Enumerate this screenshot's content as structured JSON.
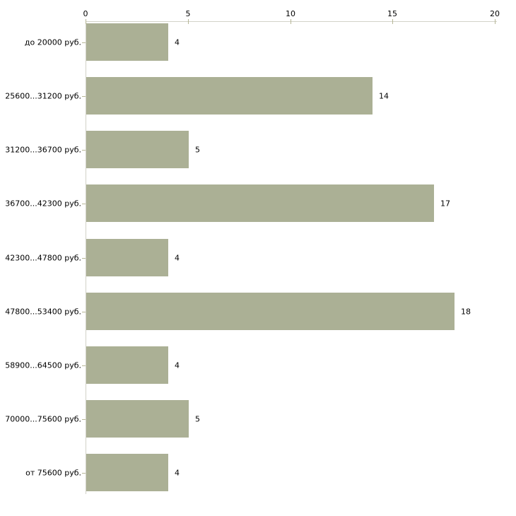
{
  "chart_data": {
    "type": "bar",
    "orientation": "horizontal",
    "categories": [
      "до 20000 руб.",
      "25600...31200 руб.",
      "31200...36700 руб.",
      "36700...42300 руб.",
      "42300...47800 руб.",
      "47800...53400 руб.",
      "58900...64500 руб.",
      "70000...75600 руб.",
      "от 75600 руб."
    ],
    "values": [
      4,
      14,
      5,
      17,
      4,
      18,
      4,
      5,
      4
    ],
    "value_labels": [
      "4",
      "14",
      "5",
      "17",
      "4",
      "18",
      "4",
      "5",
      "4"
    ],
    "x_ticks": [
      "0",
      "5",
      "10",
      "15",
      "20"
    ],
    "x_tick_values": [
      0,
      5,
      10,
      15,
      20
    ],
    "xlim": [
      0,
      20
    ],
    "grid": false,
    "legend": "none",
    "value_labels_shown": true,
    "colors": {
      "bar": "#abb095",
      "axis_line": "#d2d2c8",
      "tick": "#b6b696",
      "text": "#000000",
      "background": "#ffffff"
    }
  }
}
